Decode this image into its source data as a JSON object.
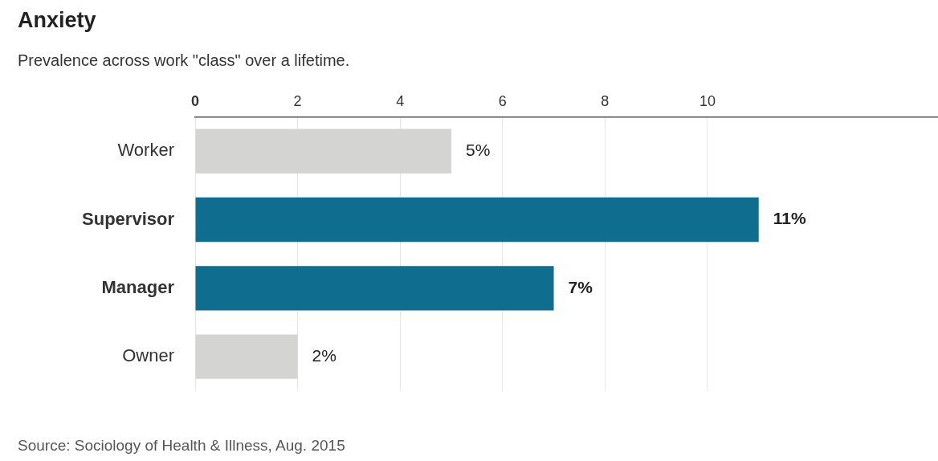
{
  "chart_data": {
    "type": "bar",
    "orientation": "horizontal",
    "title": "Anxiety",
    "subtitle": "Prevalence across work \"class\" over a lifetime.",
    "categories": [
      "Worker",
      "Supervisor",
      "Manager",
      "Owner"
    ],
    "values": [
      5,
      11,
      7,
      2
    ],
    "colors": [
      "#d4d4d2",
      "#0f6d8f",
      "#0f6d8f",
      "#d4d4d2"
    ],
    "value_labels": [
      "5%",
      "11%",
      "7%",
      "2%"
    ],
    "xlim": [
      0,
      14.5
    ],
    "xticks": [
      0,
      2,
      4,
      6,
      8,
      10
    ],
    "grid": "x",
    "legend": false,
    "annotations": [
      "Source: Sociology of Health & Illness, Aug. 2015"
    ]
  }
}
